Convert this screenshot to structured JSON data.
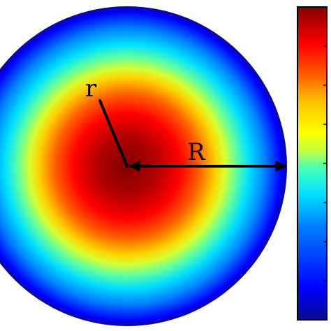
{
  "diagram": {
    "radius_label_inner": "r",
    "radius_label_outer": "R"
  },
  "colors": {
    "background": "#ffffff",
    "outline": "#000000",
    "colormap": [
      "#0a0a8c",
      "#0000ff",
      "#0080ff",
      "#00e0ff",
      "#40ffc0",
      "#c0ff40",
      "#ffff00",
      "#ffc000",
      "#ff6000",
      "#ff0000",
      "#b00000",
      "#800000"
    ]
  },
  "colorbar": {
    "colormap_name": "jet",
    "tick_count": 9
  }
}
